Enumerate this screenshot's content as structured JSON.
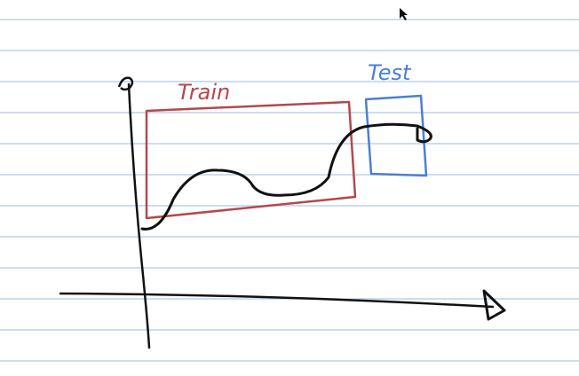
{
  "labels": {
    "train": "Train",
    "test": "Test"
  }
}
